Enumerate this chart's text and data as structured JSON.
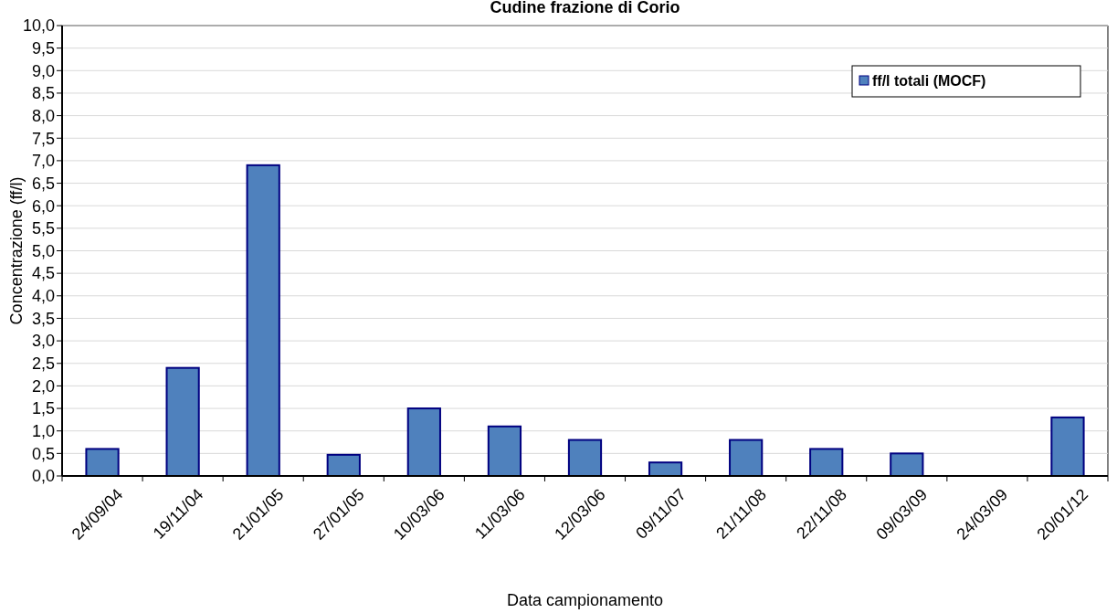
{
  "chart_data": {
    "type": "bar",
    "title": "Cudine frazione di Corio",
    "xlabel": "Data campionamento",
    "ylabel": "Concentrazione (ff/l)",
    "categories": [
      "24/09/04",
      "19/11/04",
      "21/01/05",
      "27/01/05",
      "10/03/06",
      "11/03/06",
      "12/03/06",
      "09/11/07",
      "21/11/08",
      "22/11/08",
      "09/03/09",
      "24/03/09",
      "20/01/12"
    ],
    "series": [
      {
        "name": "ff/l totali (MOCF)",
        "color": "#4f81bd",
        "values": [
          0.6,
          2.4,
          6.9,
          0.47,
          1.5,
          1.1,
          0.8,
          0.3,
          0.8,
          0.6,
          0.5,
          0,
          1.3
        ]
      }
    ],
    "ylim": [
      0,
      10
    ],
    "yticks": [
      {
        "value": 0,
        "label": "0,0"
      },
      {
        "value": 0.5,
        "label": "0,5"
      },
      {
        "value": 1,
        "label": "1,0"
      },
      {
        "value": 1.5,
        "label": "1,5"
      },
      {
        "value": 2,
        "label": "2,0"
      },
      {
        "value": 2.5,
        "label": "2,5"
      },
      {
        "value": 3,
        "label": "3,0"
      },
      {
        "value": 3.5,
        "label": "3,5"
      },
      {
        "value": 4,
        "label": "4,0"
      },
      {
        "value": 4.5,
        "label": "4,5"
      },
      {
        "value": 5,
        "label": "5,0"
      },
      {
        "value": 5.5,
        "label": "5,5"
      },
      {
        "value": 6,
        "label": "6,0"
      },
      {
        "value": 6.5,
        "label": "6,5"
      },
      {
        "value": 7,
        "label": "7,0"
      },
      {
        "value": 7.5,
        "label": "7,5"
      },
      {
        "value": 8,
        "label": "8,0"
      },
      {
        "value": 8.5,
        "label": "8,5"
      },
      {
        "value": 9,
        "label": "9,0"
      },
      {
        "value": 9.5,
        "label": "9,5"
      },
      {
        "value": 10,
        "label": "10,0"
      }
    ],
    "grid": "y",
    "legend": "top right"
  }
}
